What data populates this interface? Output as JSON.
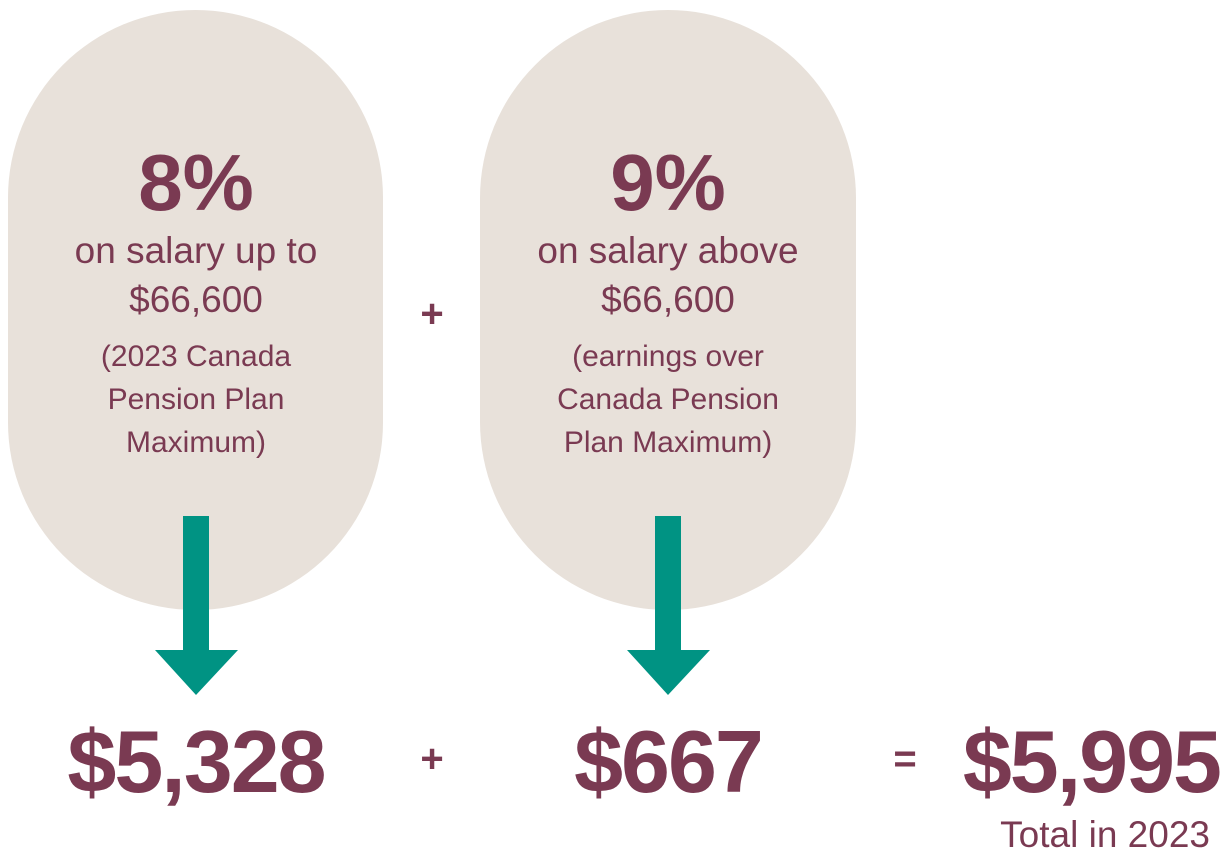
{
  "left": {
    "percent": "8%",
    "lines": [
      "on salary up to",
      "$66,600"
    ],
    "note": [
      "(2023 Canada",
      "Pension Plan",
      "Maximum)"
    ],
    "amount": "$5,328"
  },
  "right": {
    "percent": "9%",
    "lines": [
      "on salary above",
      "$66,600"
    ],
    "note": [
      "(earnings over",
      "Canada Pension",
      "Plan Maximum)"
    ],
    "amount": "$667"
  },
  "operators": {
    "plus_top": "+",
    "plus_bottom": "+",
    "equals": "="
  },
  "total": {
    "amount": "$5,995",
    "label": "Total in 2023"
  }
}
